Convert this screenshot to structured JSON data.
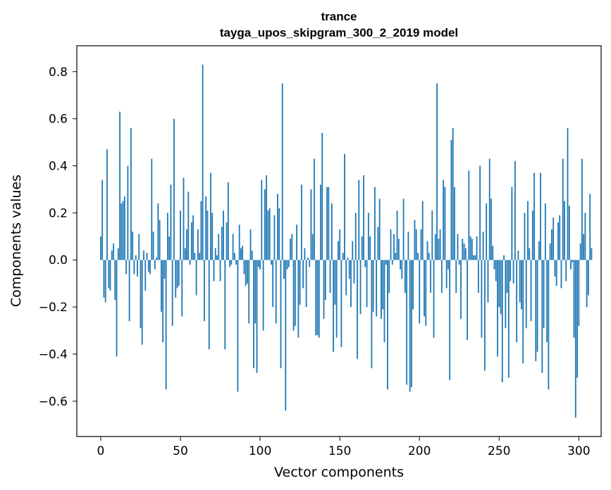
{
  "chart_data": {
    "type": "bar",
    "title": "trance",
    "subtitle": "tayga_upos_skipgram_300_2_2019 model",
    "xlabel": "Vector components",
    "ylabel": "Components values",
    "xlim": [
      -15,
      314
    ],
    "ylim": [
      -0.75,
      0.91
    ],
    "xticks": [
      0,
      50,
      100,
      150,
      200,
      250,
      300
    ],
    "yticks": [
      -0.6,
      -0.4,
      -0.2,
      0.0,
      0.2,
      0.4,
      0.6,
      0.8
    ],
    "xtick_labels": [
      "0",
      "50",
      "100",
      "150",
      "200",
      "250",
      "300"
    ],
    "ytick_labels": [
      "−0.6",
      "−0.4",
      "−0.2",
      "0.0",
      "0.2",
      "0.4",
      "0.6",
      "0.8"
    ],
    "bar_color": "#1f77b4",
    "grid": false,
    "values": [
      0.1,
      0.34,
      -0.16,
      -0.18,
      0.47,
      -0.12,
      -0.13,
      0.04,
      0.07,
      -0.17,
      -0.41,
      0.05,
      0.63,
      0.24,
      0.25,
      0.27,
      -0.06,
      0.4,
      -0.26,
      0.56,
      0.12,
      -0.06,
      0.02,
      -0.07,
      0.11,
      -0.29,
      -0.36,
      0.04,
      -0.13,
      0.03,
      -0.05,
      -0.06,
      0.43,
      0.12,
      -0.04,
      0.01,
      0.24,
      0.17,
      -0.22,
      -0.35,
      -0.08,
      -0.55,
      0.2,
      0.1,
      0.32,
      -0.28,
      0.6,
      -0.16,
      -0.12,
      -0.11,
      0.21,
      -0.24,
      0.35,
      0.05,
      0.13,
      0.29,
      -0.02,
      0.16,
      0.19,
      0.03,
      -0.15,
      0.13,
      0.03,
      0.25,
      0.83,
      -0.26,
      0.27,
      0.21,
      -0.38,
      0.37,
      0.2,
      -0.09,
      0.05,
      0.02,
      0.11,
      -0.09,
      0.14,
      0.21,
      -0.38,
      0.16,
      0.33,
      -0.03,
      -0.02,
      0.11,
      0.03,
      -0.02,
      -0.56,
      0.15,
      0.05,
      0.06,
      -0.06,
      -0.11,
      -0.1,
      -0.27,
      0.13,
      0.04,
      -0.46,
      -0.27,
      -0.48,
      -0.03,
      -0.04,
      0.34,
      -0.3,
      0.3,
      0.36,
      0.21,
      0.22,
      -0.02,
      -0.2,
      0.19,
      -0.27,
      0.28,
      0.22,
      -0.46,
      0.75,
      -0.08,
      -0.64,
      -0.04,
      -0.03,
      0.09,
      0.11,
      -0.3,
      -0.28,
      0.15,
      -0.33,
      -0.19,
      0.32,
      -0.12,
      0.05,
      -0.2,
      0.01,
      -0.03,
      0.3,
      0.11,
      0.43,
      -0.32,
      -0.32,
      -0.33,
      0.32,
      0.54,
      -0.25,
      -0.17,
      0.31,
      0.31,
      -0.14,
      0.24,
      -0.39,
      -0.19,
      -0.33,
      0.08,
      0.13,
      -0.37,
      0.03,
      0.45,
      -0.15,
      0.01,
      -0.08,
      -0.2,
      0.08,
      -0.1,
      0.2,
      -0.42,
      0.34,
      -0.23,
      0.1,
      0.36,
      -0.03,
      -0.2,
      0.2,
      0.1,
      -0.46,
      -0.22,
      0.31,
      -0.24,
      0.14,
      0.26,
      -0.25,
      -0.21,
      -0.35,
      -0.02,
      -0.55,
      -0.14,
      0.13,
      -0.02,
      0.11,
      0.03,
      0.21,
      0.09,
      -0.04,
      -0.08,
      0.26,
      -0.14,
      -0.53,
      0.12,
      -0.56,
      -0.54,
      -0.21,
      0.17,
      0.13,
      0.03,
      -0.27,
      0.13,
      0.25,
      -0.24,
      -0.28,
      0.08,
      0.03,
      -0.14,
      0.21,
      -0.33,
      0.11,
      0.75,
      0.09,
      0.13,
      -0.14,
      0.34,
      0.31,
      -0.12,
      -0.04,
      -0.51,
      0.51,
      0.56,
      0.31,
      -0.14,
      0.11,
      -0.02,
      -0.25,
      0.09,
      0.07,
      0.05,
      -0.34,
      0.38,
      0.1,
      0.09,
      0.02,
      0.02,
      0.1,
      -0.14,
      0.4,
      -0.33,
      0.12,
      -0.47,
      0.24,
      -0.18,
      0.43,
      0.26,
      0.06,
      -0.04,
      -0.09,
      -0.41,
      -0.2,
      -0.23,
      -0.52,
      0.02,
      -0.29,
      -0.14,
      -0.5,
      -0.09,
      0.31,
      -0.1,
      0.42,
      -0.35,
      0.04,
      -0.18,
      -0.21,
      -0.44,
      0.2,
      -0.29,
      0.25,
      0.05,
      -0.26,
      0.21,
      0.37,
      -0.43,
      -0.39,
      0.08,
      0.37,
      -0.48,
      -0.29,
      0.24,
      -0.35,
      -0.55,
      0.07,
      0.13,
      0.18,
      -0.07,
      -0.11,
      0.16,
      0.19,
      -0.12,
      0.43,
      0.25,
      -0.09,
      0.56,
      0.23,
      -0.04,
      -0.01,
      -0.33,
      -0.67,
      -0.5,
      -0.28,
      0.07,
      0.43,
      0.11,
      0.2,
      -0.2,
      -0.15,
      0.28,
      0.05
    ]
  }
}
